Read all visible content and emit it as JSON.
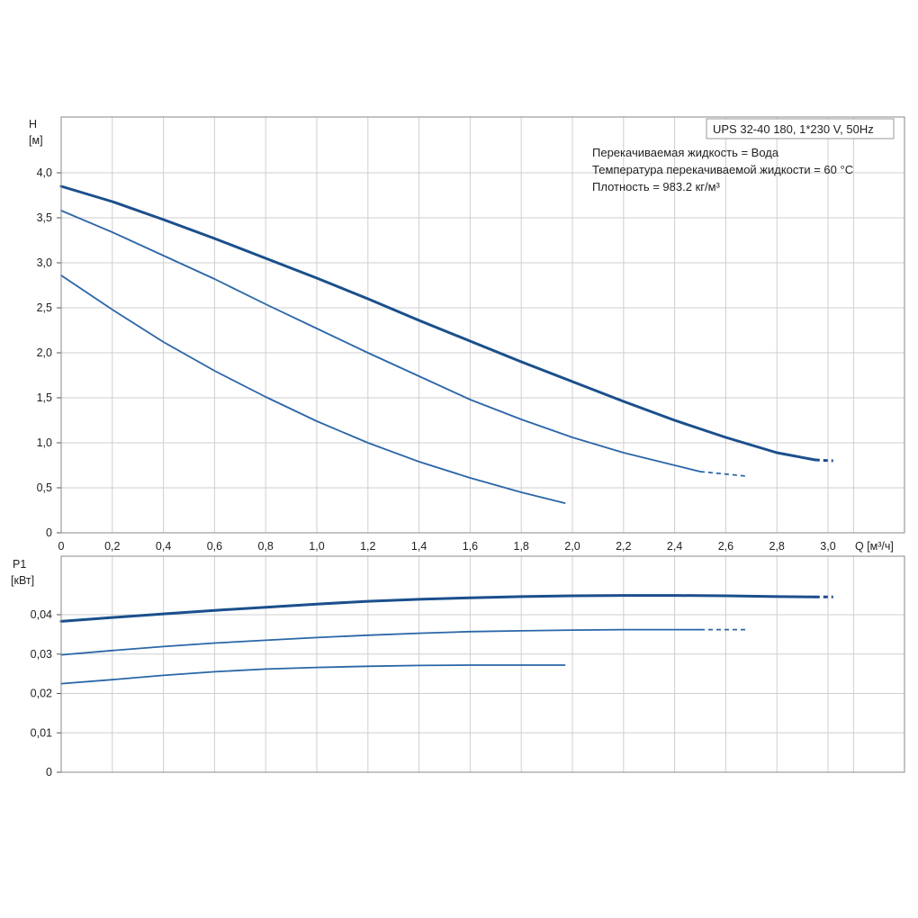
{
  "chart_data": [
    {
      "type": "line",
      "ylabel": "H",
      "yunit": "[м]",
      "xlabel": "Q [м³/ч]",
      "xlim": [
        0,
        3.2
      ],
      "ylim": [
        0,
        4.6
      ],
      "grid": true,
      "x_ticks": [
        "0",
        "0,2",
        "0,4",
        "0,6",
        "0,8",
        "1,0",
        "1,2",
        "1,4",
        "1,6",
        "1,8",
        "2,0",
        "2,2",
        "2,4",
        "2,6",
        "2,8",
        "3,0"
      ],
      "x_tick_values": [
        0,
        0.2,
        0.4,
        0.6,
        0.8,
        1.0,
        1.2,
        1.4,
        1.6,
        1.8,
        2.0,
        2.2,
        2.4,
        2.6,
        2.8,
        3.0
      ],
      "y_ticks": [
        "0",
        "0,5",
        "1,0",
        "1,5",
        "2,0",
        "2,5",
        "3,0",
        "3,5",
        "4,0"
      ],
      "y_tick_values": [
        0,
        0.5,
        1.0,
        1.5,
        2.0,
        2.5,
        3.0,
        3.5,
        4.0
      ],
      "legend_box": {
        "title": "UPS 32-40 180, 1*230 V, 50Hz",
        "lines": [
          "Перекачиваемая жидкость = Вода",
          "Температура перекачиваемой жидкости = 60 °C",
          "Плотность = 983.2 кг/м³"
        ]
      },
      "series": [
        {
          "color": "#1b4f8c",
          "width": 3,
          "x": [
            0,
            0.2,
            0.4,
            0.6,
            0.8,
            1.0,
            1.2,
            1.4,
            1.6,
            1.8,
            2.0,
            2.2,
            2.4,
            2.6,
            2.8,
            2.95
          ],
          "y": [
            3.85,
            3.68,
            3.48,
            3.27,
            3.05,
            2.83,
            2.6,
            2.36,
            2.13,
            1.9,
            1.68,
            1.46,
            1.25,
            1.06,
            0.89,
            0.81
          ],
          "dashed_x": [
            2.95,
            3.02
          ],
          "dashed_y": [
            0.81,
            0.8
          ]
        },
        {
          "color": "#2a66a8",
          "width": 1.8,
          "x": [
            0,
            0.2,
            0.4,
            0.6,
            0.8,
            1.0,
            1.2,
            1.4,
            1.6,
            1.8,
            2.0,
            2.2,
            2.4,
            2.5
          ],
          "y": [
            3.58,
            3.34,
            3.08,
            2.82,
            2.54,
            2.27,
            2.0,
            1.74,
            1.48,
            1.26,
            1.06,
            0.89,
            0.75,
            0.68
          ],
          "dashed_x": [
            2.5,
            2.68
          ],
          "dashed_y": [
            0.68,
            0.63
          ]
        },
        {
          "color": "#2a66a8",
          "width": 1.8,
          "x": [
            0,
            0.2,
            0.4,
            0.6,
            0.8,
            1.0,
            1.2,
            1.4,
            1.6,
            1.8,
            1.97
          ],
          "y": [
            2.86,
            2.48,
            2.12,
            1.8,
            1.51,
            1.24,
            1.0,
            0.79,
            0.61,
            0.45,
            0.33
          ]
        }
      ]
    },
    {
      "type": "line",
      "ylabel": "P1",
      "yunit": "[кВт]",
      "xlim": [
        0,
        3.2
      ],
      "ylim": [
        0,
        0.05
      ],
      "grid": true,
      "x_tick_values": [
        0,
        0.2,
        0.4,
        0.6,
        0.8,
        1.0,
        1.2,
        1.4,
        1.6,
        1.8,
        2.0,
        2.2,
        2.4,
        2.6,
        2.8,
        3.0
      ],
      "y_ticks": [
        "0",
        "0,01",
        "0,02",
        "0,03",
        "0,04"
      ],
      "y_tick_values": [
        0,
        0.01,
        0.02,
        0.03,
        0.04
      ],
      "series": [
        {
          "color": "#1b4f8c",
          "width": 3,
          "x": [
            0,
            0.2,
            0.4,
            0.6,
            0.8,
            1.0,
            1.2,
            1.4,
            1.6,
            1.8,
            2.0,
            2.2,
            2.4,
            2.6,
            2.8,
            2.95
          ],
          "y": [
            0.0383,
            0.0393,
            0.0402,
            0.0411,
            0.0419,
            0.0427,
            0.0434,
            0.0439,
            0.0443,
            0.0446,
            0.0448,
            0.0449,
            0.0449,
            0.0448,
            0.0446,
            0.0445
          ],
          "dashed_x": [
            2.95,
            3.02
          ],
          "dashed_y": [
            0.0445,
            0.0445
          ]
        },
        {
          "color": "#2a66a8",
          "width": 1.8,
          "x": [
            0,
            0.2,
            0.4,
            0.6,
            0.8,
            1.0,
            1.2,
            1.4,
            1.6,
            1.8,
            2.0,
            2.2,
            2.4,
            2.5
          ],
          "y": [
            0.0298,
            0.0309,
            0.0319,
            0.0328,
            0.0335,
            0.0342,
            0.0348,
            0.0353,
            0.0357,
            0.0359,
            0.0361,
            0.0362,
            0.0362,
            0.0362
          ],
          "dashed_x": [
            2.5,
            2.68
          ],
          "dashed_y": [
            0.0362,
            0.0362
          ]
        },
        {
          "color": "#2a66a8",
          "width": 1.8,
          "x": [
            0,
            0.2,
            0.4,
            0.6,
            0.8,
            1.0,
            1.2,
            1.4,
            1.6,
            1.8,
            1.97
          ],
          "y": [
            0.0225,
            0.0235,
            0.0246,
            0.0255,
            0.0262,
            0.0266,
            0.0269,
            0.0271,
            0.0272,
            0.0272,
            0.0272
          ]
        }
      ]
    }
  ]
}
